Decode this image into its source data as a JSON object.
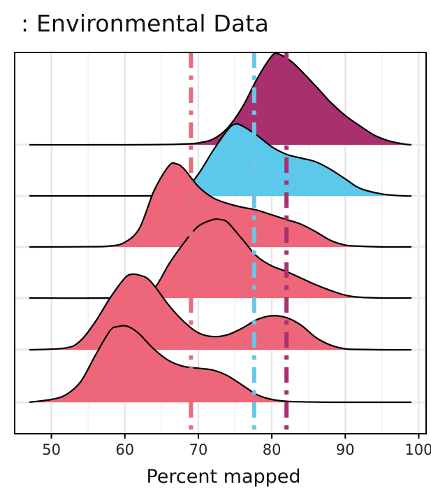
{
  "chart_data": {
    "type": "ridgeline",
    "title": ": Environmental Data",
    "xlabel": "Percent mapped",
    "ylabel": "",
    "xlim": [
      45,
      101
    ],
    "xticks": [
      50,
      60,
      70,
      80,
      90,
      100
    ],
    "grid": true,
    "legend": "none",
    "series": [
      {
        "color": "#a8306f",
        "x": [
          47,
          60,
          65,
          68,
          70,
          72,
          74,
          76,
          78,
          80,
          81,
          83,
          86,
          88,
          90,
          92,
          94,
          96,
          98,
          99
        ],
        "density": [
          0,
          0,
          0.003,
          0.008,
          0.02,
          0.06,
          0.18,
          0.4,
          0.7,
          0.94,
          0.96,
          0.86,
          0.62,
          0.45,
          0.31,
          0.2,
          0.1,
          0.04,
          0.008,
          0
        ]
      },
      {
        "color": "#5bc8ec",
        "x": [
          47,
          62,
          66,
          68,
          70,
          72,
          74,
          75,
          76,
          78,
          80,
          82,
          84,
          86,
          88,
          90,
          92,
          95,
          98,
          99
        ],
        "density": [
          0,
          0,
          0.01,
          0.05,
          0.23,
          0.48,
          0.7,
          0.76,
          0.74,
          0.64,
          0.52,
          0.44,
          0.4,
          0.36,
          0.28,
          0.18,
          0.08,
          0.02,
          0,
          0
        ]
      },
      {
        "color": "#ee6679",
        "x": [
          47,
          55,
          58,
          60,
          62,
          64,
          66,
          67,
          68,
          70,
          72,
          74,
          76,
          78,
          80,
          82,
          84,
          86,
          88,
          90,
          92,
          95,
          99
        ],
        "density": [
          0,
          0.002,
          0.01,
          0.05,
          0.2,
          0.6,
          0.86,
          0.88,
          0.83,
          0.64,
          0.52,
          0.46,
          0.42,
          0.39,
          0.34,
          0.29,
          0.24,
          0.16,
          0.07,
          0.02,
          0.008,
          0,
          0
        ]
      },
      {
        "color": "#ee6679",
        "x": [
          47,
          58,
          62,
          64,
          66,
          68,
          70,
          72,
          73,
          74,
          76,
          78,
          80,
          82,
          84,
          86,
          88,
          90,
          92,
          95,
          99
        ],
        "density": [
          0,
          0,
          0.02,
          0.1,
          0.36,
          0.58,
          0.76,
          0.83,
          0.83,
          0.8,
          0.62,
          0.44,
          0.34,
          0.28,
          0.21,
          0.14,
          0.08,
          0.03,
          0.008,
          0,
          0
        ]
      },
      {
        "color": "#ee6679",
        "x": [
          47,
          52,
          54,
          56,
          58,
          60,
          61,
          62,
          63,
          64,
          66,
          68,
          70,
          72,
          74,
          76,
          78,
          80,
          82,
          84,
          86,
          88,
          90,
          92,
          95,
          99
        ],
        "density": [
          0,
          0.02,
          0.1,
          0.3,
          0.55,
          0.76,
          0.8,
          0.79,
          0.76,
          0.68,
          0.47,
          0.3,
          0.18,
          0.14,
          0.16,
          0.23,
          0.32,
          0.36,
          0.34,
          0.26,
          0.13,
          0.05,
          0.01,
          0.004,
          0,
          0
        ]
      },
      {
        "color": "#ee6679",
        "x": [
          47,
          50,
          52,
          54,
          56,
          58,
          59,
          60,
          61,
          62,
          64,
          66,
          68,
          70,
          72,
          74,
          76,
          78,
          80,
          82,
          84,
          86,
          88,
          92,
          96,
          99
        ],
        "density": [
          0,
          0.03,
          0.08,
          0.22,
          0.5,
          0.76,
          0.8,
          0.81,
          0.78,
          0.72,
          0.56,
          0.44,
          0.38,
          0.36,
          0.34,
          0.28,
          0.18,
          0.08,
          0.03,
          0.01,
          0.005,
          0.002,
          0,
          0,
          0,
          0
        ]
      }
    ],
    "reference_lines": [
      {
        "x": 69,
        "color": "#e46c7c"
      },
      {
        "x": 77.6,
        "color": "#68c6e6"
      },
      {
        "x": 82,
        "color": "#a8306f"
      }
    ]
  }
}
